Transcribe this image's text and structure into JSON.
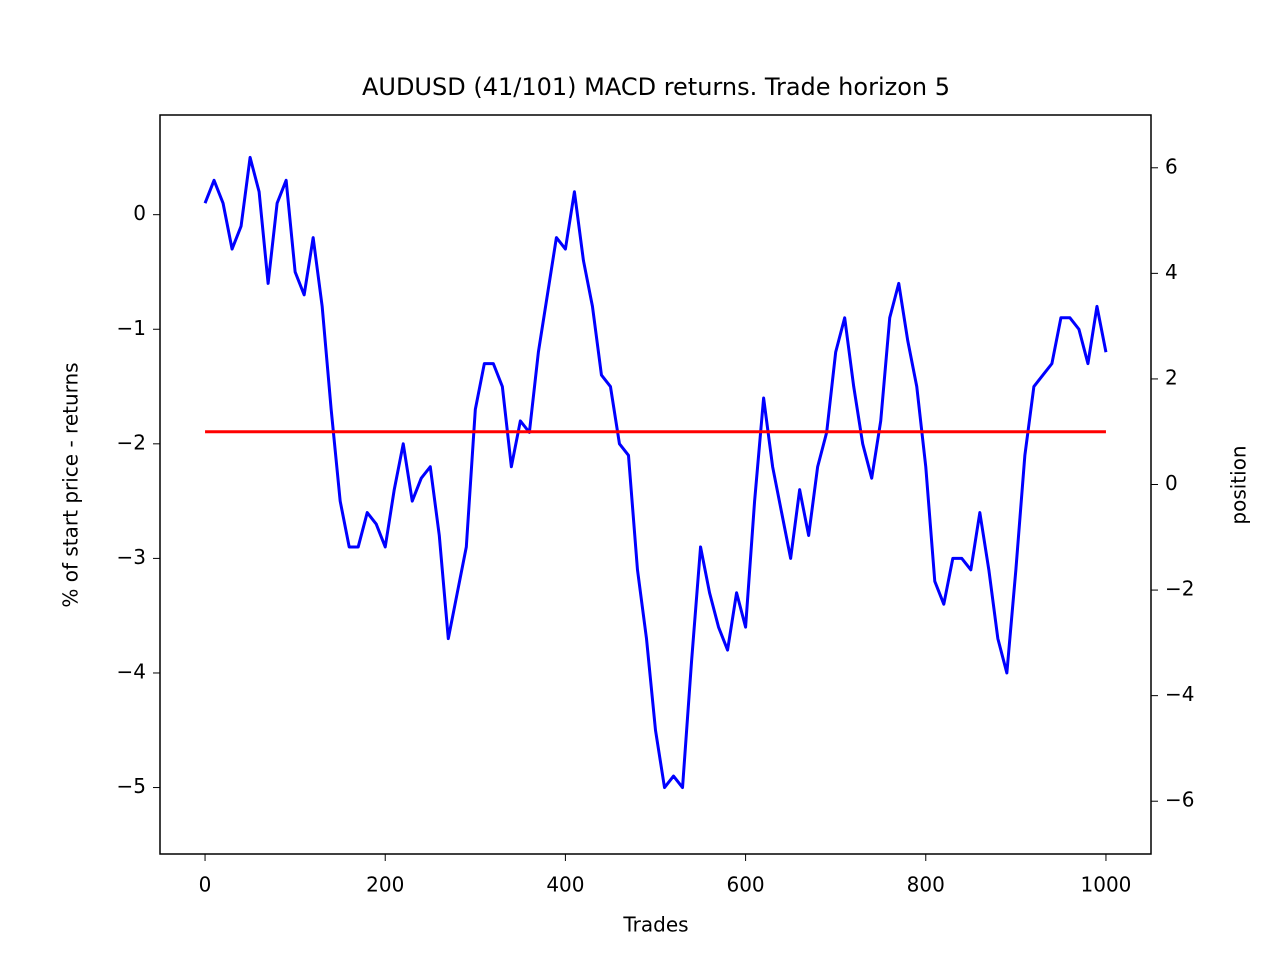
{
  "chart_data": {
    "type": "line",
    "title": "AUDUSD (41/101) MACD returns. Trade horizon 5",
    "x_label": "Trades",
    "y_label": "% of start price - returns",
    "y2_label": "position",
    "xlim": [
      -50,
      1050
    ],
    "xticks": [
      0,
      200,
      400,
      600,
      800,
      1000
    ],
    "ylim": [
      -5.58,
      0.87
    ],
    "yticks": [
      {
        "value": -5,
        "label": "−5"
      },
      {
        "value": -4,
        "label": "−4"
      },
      {
        "value": -3,
        "label": "−3"
      },
      {
        "value": -2,
        "label": "−2"
      },
      {
        "value": -1,
        "label": "−1"
      },
      0
    ],
    "y2lim": [
      -7,
      7
    ],
    "y2ticks": [
      {
        "value": -6,
        "label": "−6"
      },
      {
        "value": -4,
        "label": "−4"
      },
      {
        "value": -2,
        "label": "−2"
      },
      0,
      2,
      4,
      6
    ],
    "y_label_color": "#0000ff",
    "y2_label_color": "#ff0000",
    "series": [
      {
        "name": "returns",
        "color": "#0000ff",
        "x": [
          0,
          10,
          20,
          30,
          40,
          50,
          60,
          70,
          80,
          90,
          100,
          110,
          120,
          130,
          140,
          150,
          160,
          170,
          180,
          190,
          200,
          210,
          220,
          230,
          240,
          250,
          260,
          270,
          280,
          290,
          300,
          310,
          320,
          330,
          340,
          350,
          360,
          370,
          380,
          390,
          400,
          410,
          420,
          430,
          440,
          450,
          460,
          470,
          480,
          490,
          500,
          510,
          520,
          530,
          540,
          550,
          560,
          570,
          580,
          590,
          600,
          610,
          620,
          630,
          640,
          650,
          660,
          670,
          680,
          690,
          700,
          710,
          720,
          730,
          740,
          750,
          760,
          770,
          780,
          790,
          800,
          810,
          820,
          830,
          840,
          850,
          860,
          870,
          880,
          890,
          900,
          910,
          920,
          930,
          940,
          950,
          960,
          970,
          980,
          990,
          1000
        ],
        "values": [
          0.1,
          0.3,
          0.1,
          -0.3,
          -0.1,
          0.5,
          0.2,
          -0.6,
          0.1,
          0.3,
          -0.5,
          -0.7,
          -0.2,
          -0.8,
          -1.7,
          -2.5,
          -2.9,
          -2.9,
          -2.6,
          -2.7,
          -2.9,
          -2.4,
          -2.0,
          -2.5,
          -2.3,
          -2.2,
          -2.8,
          -3.7,
          -3.3,
          -2.9,
          -1.7,
          -1.3,
          -1.3,
          -1.5,
          -2.2,
          -1.8,
          -1.9,
          -1.2,
          -0.7,
          -0.2,
          -0.3,
          0.2,
          -0.4,
          -0.8,
          -1.4,
          -1.5,
          -2.0,
          -2.1,
          -3.1,
          -3.7,
          -4.5,
          -5.0,
          -4.9,
          -5.0,
          -3.9,
          -2.9,
          -3.3,
          -3.6,
          -3.8,
          -3.3,
          -3.6,
          -2.5,
          -1.6,
          -2.2,
          -2.6,
          -3.0,
          -2.4,
          -2.8,
          -2.2,
          -1.9,
          -1.2,
          -0.9,
          -1.5,
          -2.0,
          -2.3,
          -1.8,
          -0.9,
          -0.6,
          -1.1,
          -1.5,
          -2.2,
          -3.2,
          -3.4,
          -3.0,
          -3.0,
          -3.1,
          -2.6,
          -3.1,
          -3.7,
          -4.0,
          -3.1,
          -2.1,
          -1.5,
          -1.4,
          -1.3,
          -0.9,
          -0.9,
          -1.0,
          -1.3,
          -0.8,
          -1.2
        ]
      },
      {
        "name": "position",
        "color": "#ff0000",
        "axis": "y2",
        "x": [
          0,
          1000
        ],
        "values": [
          1,
          1
        ]
      }
    ]
  }
}
